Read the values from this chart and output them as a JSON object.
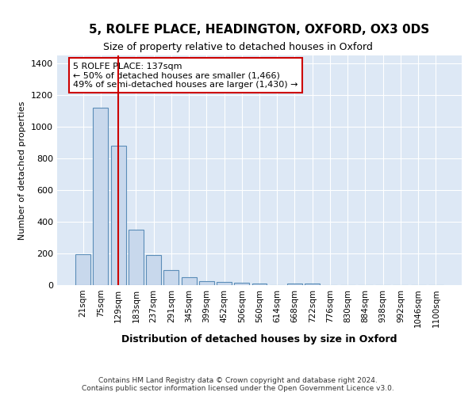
{
  "title1": "5, ROLFE PLACE, HEADINGTON, OXFORD, OX3 0DS",
  "title2": "Size of property relative to detached houses in Oxford",
  "xlabel": "Distribution of detached houses by size in Oxford",
  "ylabel": "Number of detached properties",
  "categories": [
    "21sqm",
    "75sqm",
    "129sqm",
    "183sqm",
    "237sqm",
    "291sqm",
    "345sqm",
    "399sqm",
    "452sqm",
    "506sqm",
    "560sqm",
    "614sqm",
    "668sqm",
    "722sqm",
    "776sqm",
    "830sqm",
    "884sqm",
    "938sqm",
    "992sqm",
    "1046sqm",
    "1100sqm"
  ],
  "values": [
    197,
    1120,
    880,
    350,
    190,
    97,
    50,
    25,
    20,
    15,
    12,
    0,
    10,
    10,
    0,
    0,
    0,
    0,
    0,
    0,
    0
  ],
  "bar_color": "#c8d8ec",
  "bar_edge_color": "#5b8db8",
  "vline_x": 2,
  "vline_color": "#cc0000",
  "annotation_title": "5 ROLFE PLACE: 137sqm",
  "annotation_line1": "← 50% of detached houses are smaller (1,466)",
  "annotation_line2": "49% of semi-detached houses are larger (1,430) →",
  "annotation_box_facecolor": "#ffffff",
  "annotation_box_edgecolor": "#cc0000",
  "ylim": [
    0,
    1450
  ],
  "yticks": [
    0,
    200,
    400,
    600,
    800,
    1000,
    1200,
    1400
  ],
  "footer": "Contains HM Land Registry data © Crown copyright and database right 2024.\nContains public sector information licensed under the Open Government Licence v3.0.",
  "fig_bg_color": "#ffffff",
  "plot_bg_color": "#dde8f5",
  "grid_color": "#ffffff",
  "title1_fontsize": 11,
  "title2_fontsize": 9,
  "xlabel_fontsize": 9,
  "ylabel_fontsize": 8,
  "tick_fontsize": 7.5,
  "footer_fontsize": 6.5
}
